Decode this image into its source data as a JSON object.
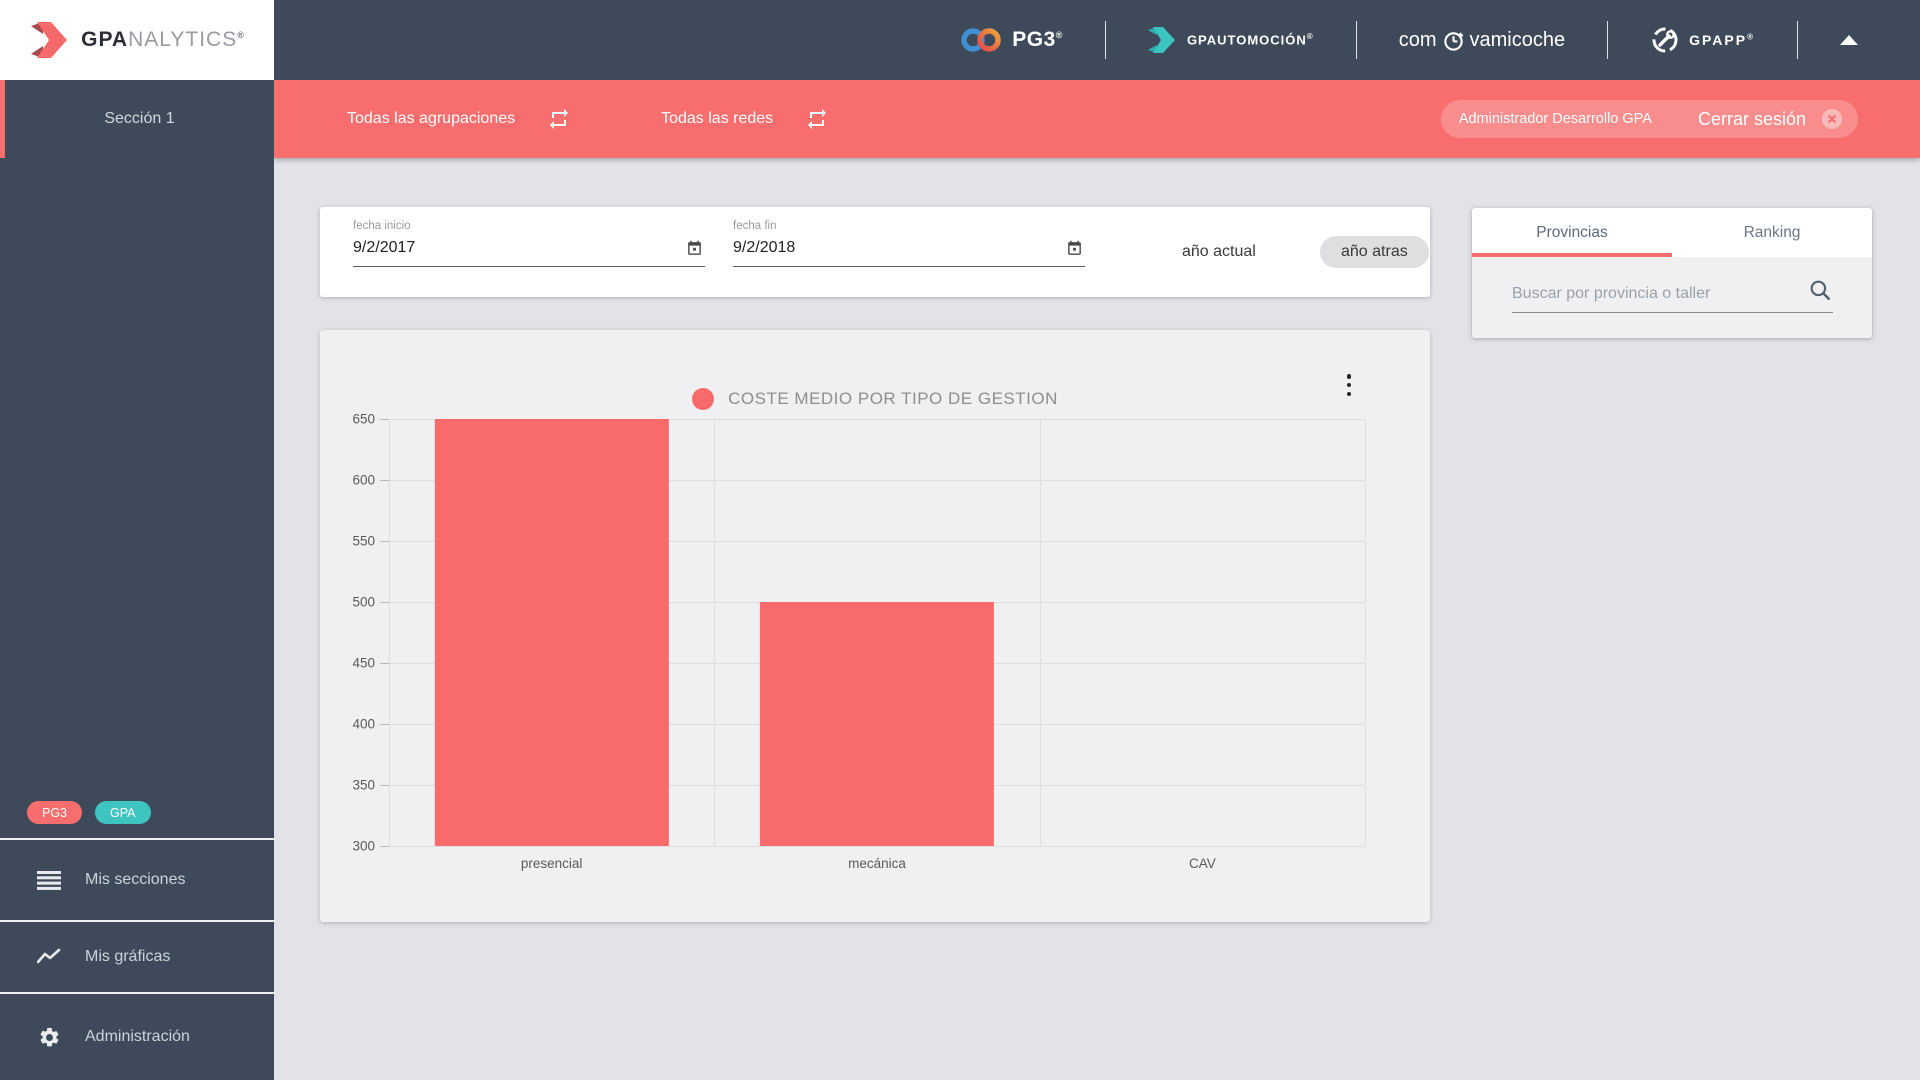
{
  "header": {
    "brand": {
      "bold": "GPA",
      "light": "NALYTICS",
      "reg": "®"
    },
    "logos": {
      "pg3": "PG3",
      "pg3_reg": "®",
      "gpautomocion": "GPAUTOMOCIÓN",
      "gpautomocion_reg": "®",
      "comova_pre": "com",
      "comova_post": "vamicoche",
      "gpapp": "GPAPP",
      "gpapp_reg": "®"
    }
  },
  "toolbar": {
    "agrupaciones_label": "Todas las agrupaciones",
    "redes_label": "Todas las redes",
    "user_chip": "Administrador Desarrollo GPA",
    "logout_label": "Cerrar sesión"
  },
  "sidebar": {
    "section_label": "Sección 1",
    "badges": [
      {
        "label": "PG3",
        "color": "#f86e6e"
      },
      {
        "label": "GPA",
        "color": "#3fc5c1"
      }
    ],
    "items": [
      {
        "label": "Mis secciones"
      },
      {
        "label": "Mis gráficas"
      },
      {
        "label": "Administración"
      }
    ]
  },
  "filters": {
    "fecha_inicio_label": "fecha inicio",
    "fecha_inicio_value": "9/2/2017",
    "fecha_fin_label": "fecha fin",
    "fecha_fin_value": "9/2/2018",
    "ano_actual_label": "año actual",
    "ano_atras_label": "año atras"
  },
  "panel": {
    "tabs": [
      {
        "label": "Provincias",
        "active": true
      },
      {
        "label": "Ranking",
        "active": false
      }
    ],
    "search_placeholder": "Buscar por provincia o taller"
  },
  "chart_data": {
    "type": "bar",
    "title": "COSTE MEDIO POR TIPO DE GESTION",
    "categories": [
      "presencial",
      "mecánica",
      "CAV"
    ],
    "values": [
      650,
      500,
      null
    ],
    "ylim": [
      300,
      650
    ],
    "y_ticks": [
      650,
      600,
      550,
      500,
      450,
      400,
      350,
      300
    ],
    "series_color": "#f96b6b",
    "legend_position": "top-center",
    "grid": true,
    "note": "presencial bar reaches the axis maximum (clipped at 650); CAV shows no bar"
  },
  "colors": {
    "accent_red": "#f86e6e",
    "teal": "#3fc5c1",
    "header_dark": "#3e4a59",
    "page_bg": "#e3e3e7",
    "card_gray": "#f0f0f2"
  }
}
